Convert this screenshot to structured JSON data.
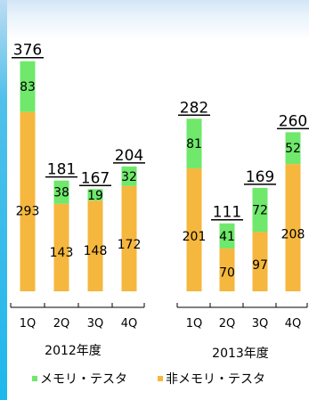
{
  "chart_data": {
    "type": "bar",
    "stacked": true,
    "groups": [
      {
        "label": "2012年度",
        "categories": [
          "1Q",
          "2Q",
          "3Q",
          "4Q"
        ]
      },
      {
        "label": "2013年度",
        "categories": [
          "1Q",
          "2Q",
          "3Q",
          "4Q"
        ]
      }
    ],
    "series": [
      {
        "name": "非メモリ・テスタ",
        "color": "#f5b73d",
        "values": [
          293,
          143,
          148,
          172,
          201,
          70,
          97,
          208
        ]
      },
      {
        "name": "メモリ・テスタ",
        "color": "#6fe86b",
        "values": [
          83,
          38,
          19,
          32,
          81,
          41,
          72,
          52
        ]
      }
    ],
    "totals": [
      376,
      181,
      167,
      204,
      282,
      111,
      169,
      260
    ],
    "legend_order": [
      "メモリ・テスタ",
      "非メモリ・テスタ"
    ],
    "legend_position": "bottom",
    "ylim": [
      0,
      390
    ],
    "grid": false
  }
}
